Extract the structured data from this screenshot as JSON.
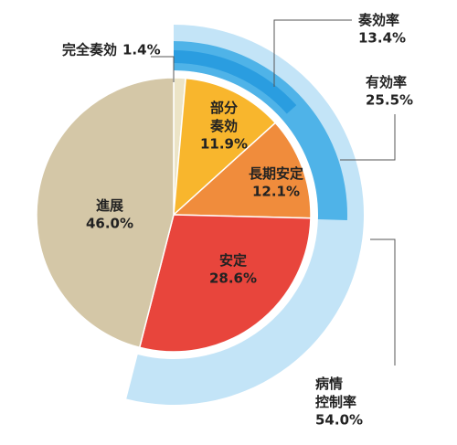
{
  "chart_data": {
    "type": "pie",
    "categories": [
      "完全奏効",
      "部分\n奏効",
      "長期安定",
      "安定",
      "進展"
    ],
    "values": [
      1.4,
      11.9,
      12.1,
      28.6,
      46.0
    ],
    "value_labels": [
      "1.4%",
      "11.9%",
      "12.1%",
      "28.6%",
      "46.0%"
    ],
    "colors": [
      "#ece4c6",
      "#f8b62d",
      "#f08c3c",
      "#e8453c",
      "#d4c7a7"
    ],
    "rings": {
      "names": [
        "奏効率",
        "有効率",
        "病情\n控制率"
      ],
      "values": [
        13.4,
        25.5,
        54.0
      ],
      "value_labels": [
        "13.4%",
        "25.5%",
        "54.0%"
      ],
      "colors": [
        "#2a9de0",
        "#4fb3e8",
        "#c3e4f7"
      ]
    }
  }
}
